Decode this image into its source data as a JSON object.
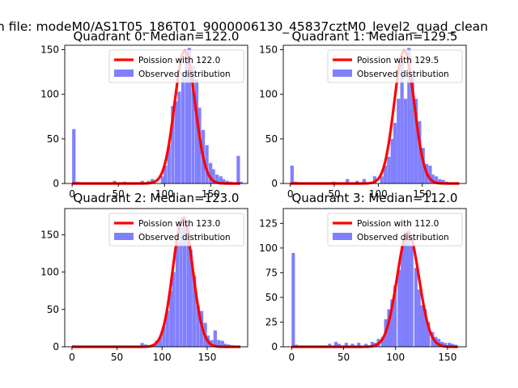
{
  "figure": {
    "suptitle": "n file: modeM0/AS1T05_186T01_9000006130_45837cztM0_level2_quad_clean"
  },
  "colors": {
    "bars": "#8080ff",
    "curve": "#ff0000"
  },
  "chart_data": [
    {
      "type": "bar",
      "title": "Quadrant 0: Median=122.0",
      "median": 122.0,
      "legend": {
        "curve": "Poission with 122.0",
        "bars": "Observed distribution",
        "placement": "top-right"
      },
      "xlim": [
        -8,
        190
      ],
      "ylim": [
        0,
        155
      ],
      "xticks": [
        0,
        50,
        100,
        150
      ],
      "yticks": [
        0,
        50,
        100,
        150
      ],
      "bin_width": 3.7,
      "bins": [
        [
          0,
          61
        ],
        [
          3.7,
          2
        ],
        [
          44,
          3
        ],
        [
          55,
          2
        ],
        [
          74,
          3
        ],
        [
          81,
          3
        ],
        [
          85,
          5
        ],
        [
          96,
          8
        ],
        [
          99,
          20
        ],
        [
          103,
          43
        ],
        [
          107,
          87
        ],
        [
          111,
          92
        ],
        [
          114,
          103
        ],
        [
          118,
          125
        ],
        [
          122,
          148
        ],
        [
          125,
          152
        ],
        [
          129,
          132
        ],
        [
          133,
          117
        ],
        [
          136,
          85
        ],
        [
          140,
          60
        ],
        [
          144,
          43
        ],
        [
          148,
          23
        ],
        [
          151,
          16
        ],
        [
          155,
          10
        ],
        [
          159,
          8
        ],
        [
          162,
          5
        ],
        [
          166,
          3
        ],
        [
          170,
          2
        ],
        [
          178,
          31
        ],
        [
          181,
          2
        ]
      ]
    },
    {
      "type": "bar",
      "title": "Quadrant 1: Median=129.5",
      "median": 129.5,
      "legend": {
        "curve": "Poission with 129.5",
        "bars": "Observed distribution",
        "placement": "top-right"
      },
      "xlim": [
        -8,
        200
      ],
      "ylim": [
        0,
        155
      ],
      "xticks": [
        0,
        50,
        100,
        150
      ],
      "yticks": [
        0,
        50,
        100,
        150
      ],
      "bin_width": 3.9,
      "bins": [
        [
          0,
          20
        ],
        [
          4,
          2
        ],
        [
          47,
          2
        ],
        [
          63,
          5
        ],
        [
          74,
          3
        ],
        [
          82,
          5
        ],
        [
          94,
          8
        ],
        [
          102,
          8
        ],
        [
          106,
          20
        ],
        [
          110,
          30
        ],
        [
          114,
          50
        ],
        [
          117,
          68
        ],
        [
          121,
          95
        ],
        [
          125,
          137
        ],
        [
          129,
          95
        ],
        [
          133,
          152
        ],
        [
          137,
          120
        ],
        [
          141,
          95
        ],
        [
          145,
          70
        ],
        [
          149,
          40
        ],
        [
          153,
          22
        ],
        [
          157,
          20
        ],
        [
          160,
          10
        ],
        [
          164,
          8
        ],
        [
          168,
          5
        ],
        [
          172,
          4
        ],
        [
          176,
          2
        ]
      ]
    },
    {
      "type": "bar",
      "title": "Quadrant 2: Median=123.0",
      "median": 123.0,
      "legend": {
        "curve": "Poission with 123.0",
        "bars": "Observed distribution",
        "placement": "top-right"
      },
      "xlim": [
        -8,
        195
      ],
      "ylim": [
        0,
        185
      ],
      "xticks": [
        0,
        50,
        100,
        150
      ],
      "yticks": [
        0,
        50,
        100,
        150
      ],
      "bin_width": 3.8,
      "bins": [
        [
          0,
          2
        ],
        [
          4,
          1
        ],
        [
          39,
          1
        ],
        [
          76,
          5
        ],
        [
          80,
          3
        ],
        [
          88,
          3
        ],
        [
          92,
          8
        ],
        [
          96,
          13
        ],
        [
          100,
          27
        ],
        [
          104,
          48
        ],
        [
          108,
          75
        ],
        [
          111,
          100
        ],
        [
          115,
          140
        ],
        [
          119,
          160
        ],
        [
          123,
          175
        ],
        [
          127,
          165
        ],
        [
          130,
          130
        ],
        [
          134,
          95
        ],
        [
          138,
          55
        ],
        [
          142,
          48
        ],
        [
          146,
          32
        ],
        [
          149,
          15
        ],
        [
          153,
          9
        ],
        [
          157,
          22
        ],
        [
          161,
          9
        ],
        [
          165,
          8
        ],
        [
          168,
          4
        ],
        [
          172,
          3
        ],
        [
          176,
          2
        ]
      ]
    },
    {
      "type": "bar",
      "title": "Quadrant 3: Median=112.0",
      "median": 112.0,
      "legend": {
        "curve": "Poission with 112.0",
        "bars": "Observed distribution",
        "placement": "top-right"
      },
      "xlim": [
        -8,
        168
      ],
      "ylim": [
        0,
        140
      ],
      "xticks": [
        0,
        50,
        100,
        150
      ],
      "yticks": [
        0,
        25,
        50,
        75,
        100,
        125
      ],
      "bin_width": 3.2,
      "bins": [
        [
          0,
          95
        ],
        [
          3,
          2
        ],
        [
          35,
          3
        ],
        [
          41,
          5
        ],
        [
          44,
          3
        ],
        [
          51,
          4
        ],
        [
          57,
          3
        ],
        [
          63,
          4
        ],
        [
          70,
          3
        ],
        [
          76,
          5
        ],
        [
          79,
          4
        ],
        [
          82,
          8
        ],
        [
          86,
          10
        ],
        [
          89,
          28
        ],
        [
          92,
          38
        ],
        [
          95,
          48
        ],
        [
          98,
          62
        ],
        [
          102,
          78
        ],
        [
          105,
          102
        ],
        [
          108,
          115
        ],
        [
          111,
          118
        ],
        [
          114,
          102
        ],
        [
          118,
          80
        ],
        [
          121,
          58
        ],
        [
          124,
          42
        ],
        [
          127,
          38
        ],
        [
          130,
          25
        ],
        [
          134,
          15
        ],
        [
          137,
          10
        ],
        [
          140,
          8
        ],
        [
          143,
          5
        ],
        [
          146,
          4
        ],
        [
          150,
          4
        ],
        [
          153,
          3
        ],
        [
          156,
          2
        ]
      ]
    }
  ]
}
